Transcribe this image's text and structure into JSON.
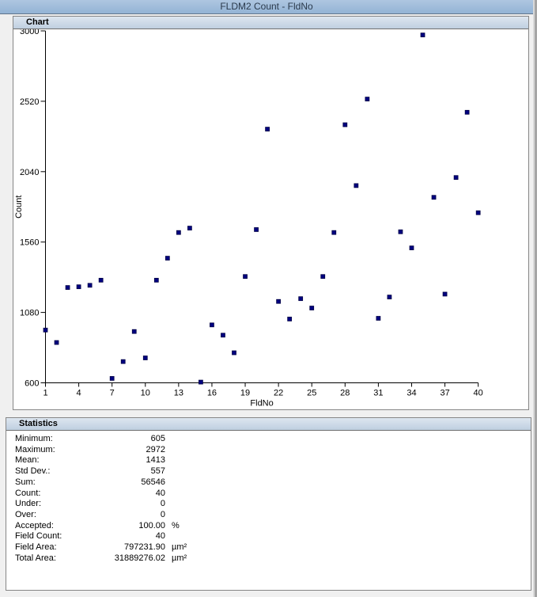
{
  "window": {
    "title": "FLDM2 Count - FldNo"
  },
  "chart_panel": {
    "header": "Chart"
  },
  "stats_panel": {
    "header": "Statistics",
    "rows": [
      {
        "label": "Minimum:",
        "value": "605",
        "unit": ""
      },
      {
        "label": "Maximum:",
        "value": "2972",
        "unit": ""
      },
      {
        "label": "Mean:",
        "value": "1413",
        "unit": ""
      },
      {
        "label": "Std Dev.:",
        "value": "557",
        "unit": ""
      },
      {
        "label": "Sum:",
        "value": "56546",
        "unit": ""
      },
      {
        "label": "Count:",
        "value": "40",
        "unit": ""
      },
      {
        "label": "Under:",
        "value": "0",
        "unit": ""
      },
      {
        "label": "Over:",
        "value": "0",
        "unit": ""
      },
      {
        "label": "Accepted:",
        "value": "100.00",
        "unit": "%"
      },
      {
        "label": "Field Count:",
        "value": "40",
        "unit": ""
      },
      {
        "label": "Field Area:",
        "value": "797231.90",
        "unit": "µm²"
      },
      {
        "label": "Total Area:",
        "value": "31889276.02",
        "unit": "µm²"
      }
    ]
  },
  "chart_data": {
    "type": "scatter",
    "title": "FLDM2 Count - FldNo",
    "xlabel": "FldNo",
    "ylabel": "Count",
    "xlim": [
      1,
      40
    ],
    "ylim": [
      600,
      3000
    ],
    "x_ticks": [
      1,
      4,
      7,
      10,
      13,
      16,
      19,
      22,
      25,
      28,
      31,
      34,
      37,
      40
    ],
    "y_ticks": [
      600,
      1080,
      1560,
      2040,
      2520,
      3000
    ],
    "grid": false,
    "legend": "none",
    "marker": "square",
    "marker_color": "#000080",
    "x": [
      1,
      2,
      3,
      4,
      5,
      6,
      7,
      8,
      9,
      10,
      11,
      12,
      13,
      14,
      15,
      16,
      17,
      18,
      19,
      20,
      21,
      22,
      23,
      24,
      25,
      26,
      27,
      28,
      29,
      30,
      31,
      32,
      33,
      34,
      35,
      36,
      37,
      38,
      39,
      40
    ],
    "y": [
      960,
      875,
      1250,
      1255,
      1265,
      1300,
      630,
      745,
      950,
      770,
      1300,
      1450,
      1625,
      1655,
      605,
      995,
      925,
      805,
      1325,
      1645,
      2330,
      1155,
      1035,
      1174,
      1110,
      1325,
      1625,
      2360,
      1945,
      2535,
      1040,
      1185,
      1630,
      1520,
      2972,
      1865,
      1205,
      2000,
      2445,
      1760
    ]
  },
  "colors": {
    "titlebar": "#9db9d8",
    "panel_header": "#c3d2e2",
    "marker": "#000080",
    "background": "#f0f0f0"
  }
}
